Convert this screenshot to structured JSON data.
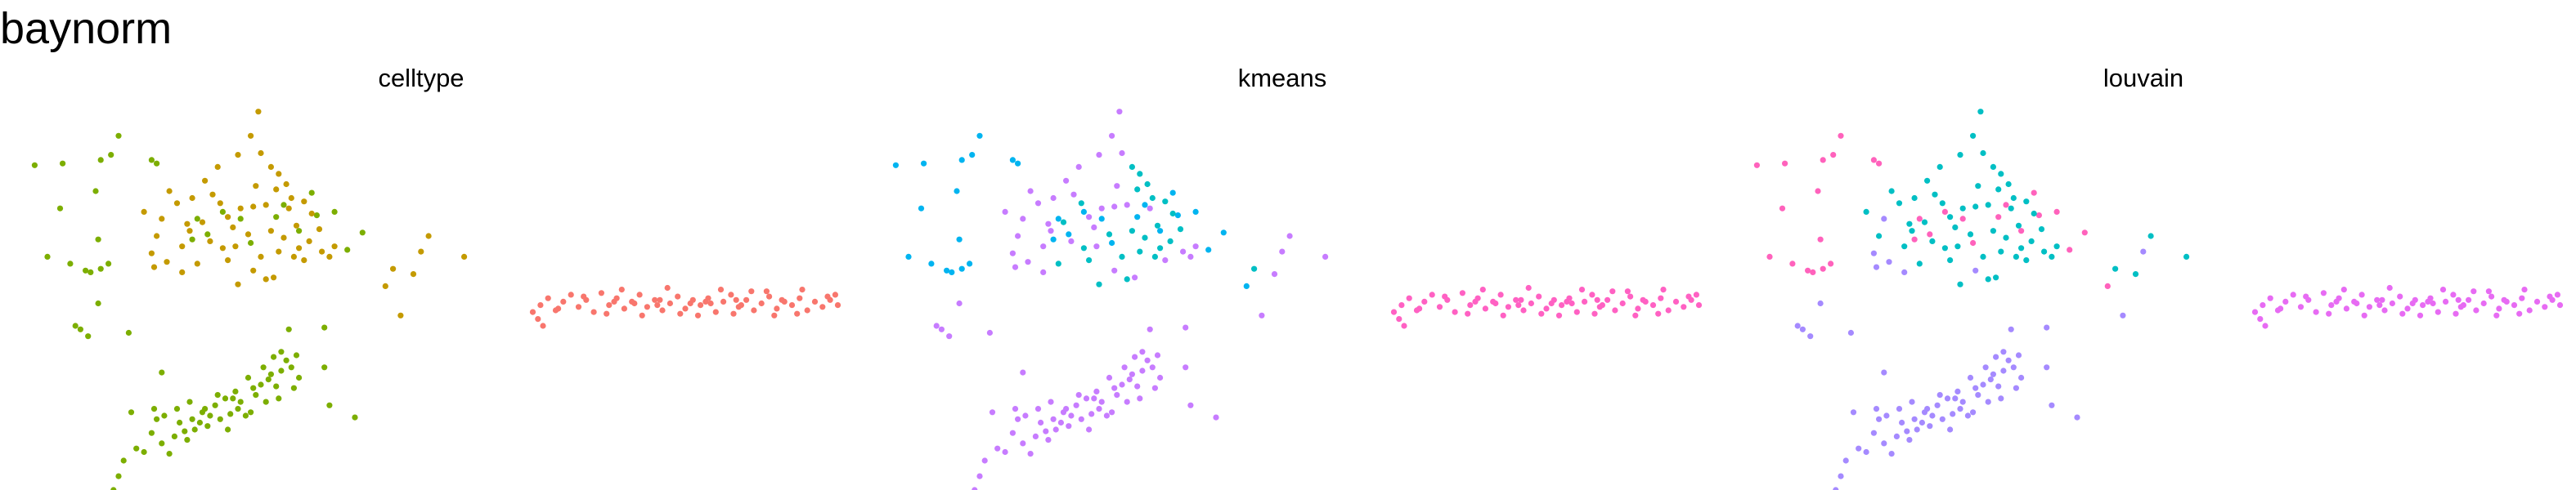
{
  "title": "baynorm",
  "chart_data": {
    "type": "scatter",
    "facets": [
      "celltype",
      "kmeans",
      "louvain"
    ],
    "axes": {
      "visible": false,
      "grid": false
    },
    "legend": "none",
    "points": [
      [
        -10.0,
        -1.5,
        1,
        3,
        3
      ],
      [
        -9.0,
        -1.5,
        1,
        3,
        3
      ],
      [
        -8.5,
        -0.5,
        1,
        3,
        3
      ],
      [
        -8.3,
        0.3,
        1,
        3,
        3
      ],
      [
        -8.1,
        1.2,
        1,
        3,
        3
      ],
      [
        -7.6,
        1.9,
        1,
        3,
        3
      ],
      [
        -7.3,
        1.7,
        1,
        3,
        3
      ],
      [
        -7.0,
        2.8,
        1,
        3,
        3
      ],
      [
        -6.8,
        3.6,
        1,
        3,
        3
      ],
      [
        -6.5,
        3.8,
        1,
        3,
        3
      ],
      [
        -6.3,
        1.6,
        1,
        3,
        3
      ],
      [
        -6.1,
        2.6,
        1,
        3,
        3
      ],
      [
        -5.9,
        3.4,
        1,
        3,
        3
      ],
      [
        -5.7,
        2.9,
        1,
        3,
        3
      ],
      [
        -5.5,
        4.6,
        1,
        3,
        3
      ],
      [
        -5.3,
        3.0,
        1,
        3,
        3
      ],
      [
        -5.1,
        3.4,
        1,
        3,
        3
      ],
      [
        -4.9,
        4.2,
        1,
        3,
        3
      ],
      [
        -4.7,
        3.8,
        1,
        3,
        3
      ],
      [
        -4.5,
        4.4,
        1,
        3,
        3
      ],
      [
        -4.3,
        3.6,
        1,
        3,
        3
      ],
      [
        -4.1,
        4.8,
        1,
        3,
        3
      ],
      [
        -3.9,
        3.9,
        1,
        3,
        3
      ],
      [
        -3.7,
        5.2,
        1,
        3,
        3
      ],
      [
        -3.5,
        4.6,
        1,
        3,
        3
      ],
      [
        -3.3,
        3.8,
        1,
        3,
        3
      ],
      [
        -3.1,
        4.0,
        1,
        3,
        3
      ],
      [
        -2.9,
        5.0,
        1,
        3,
        3
      ],
      [
        -2.7,
        5.6,
        1,
        3,
        3
      ],
      [
        -2.5,
        4.6,
        1,
        3,
        3
      ],
      [
        -2.3,
        6.2,
        1,
        3,
        3
      ],
      [
        -2.1,
        5.5,
        1,
        3,
        3
      ],
      [
        -1.9,
        6.4,
        1,
        3,
        3
      ],
      [
        -1.7,
        7.0,
        1,
        3,
        3
      ],
      [
        -1.5,
        6.6,
        1,
        3,
        3
      ],
      [
        -1.3,
        7.3,
        1,
        3,
        3
      ],
      [
        -1.2,
        6.0,
        1,
        3,
        3
      ],
      [
        -6.0,
        4.2,
        1,
        3,
        3
      ],
      [
        -5.6,
        2.4,
        1,
        3,
        3
      ],
      [
        -4.8,
        3.2,
        1,
        3,
        3
      ],
      [
        -4.0,
        3.0,
        1,
        3,
        3
      ],
      [
        -3.6,
        4.2,
        1,
        3,
        3
      ],
      [
        -3.0,
        5.4,
        1,
        3,
        3
      ],
      [
        -2.4,
        5.9,
        1,
        3,
        3
      ],
      [
        -2.0,
        4.8,
        1,
        3,
        3
      ],
      [
        -1.9,
        7.5,
        1,
        3,
        3
      ],
      [
        -6.9,
        4.2,
        1,
        3,
        3
      ],
      [
        -5.4,
        3.6,
        1,
        3,
        3
      ],
      [
        -4.4,
        5.0,
        1,
        3,
        3
      ],
      [
        -3.2,
        6.0,
        1,
        3,
        3
      ],
      [
        -7.8,
        4.0,
        1,
        3,
        3
      ],
      [
        -2.2,
        7.2,
        1,
        3,
        3
      ],
      [
        -1.4,
        5.4,
        1,
        3,
        3
      ],
      [
        -0.2,
        6.6,
        1,
        3,
        3
      ],
      [
        0.0,
        4.4,
        1,
        3,
        3
      ],
      [
        1.0,
        3.7,
        1,
        3,
        3
      ],
      [
        -6.6,
        2.2,
        1,
        3,
        3
      ],
      [
        -3.8,
        4.8,
        1,
        3,
        3
      ],
      [
        -2.6,
        6.6,
        1,
        3,
        3
      ],
      [
        -5.0,
        4.0,
        1,
        3,
        3
      ],
      [
        -9.5,
        8.4,
        1,
        3,
        3
      ],
      [
        -10.0,
        9.0,
        1,
        3,
        3
      ],
      [
        -7.9,
        8.6,
        1,
        3,
        3
      ],
      [
        -6.6,
        6.3,
        1,
        3,
        3
      ],
      [
        -0.2,
        8.9,
        1,
        3,
        3
      ],
      [
        -1.6,
        8.8,
        1,
        3,
        3
      ],
      [
        -9.8,
        8.8,
        1,
        3,
        3
      ],
      [
        -9.1,
        10.3,
        1,
        3,
        3
      ],
      [
        -11.6,
        18.3,
        1,
        1,
        1
      ],
      [
        -10.5,
        18.4,
        1,
        1,
        1
      ],
      [
        -9.2,
        16.8,
        1,
        1,
        1
      ],
      [
        -9.0,
        18.6,
        1,
        1,
        1
      ],
      [
        -9.1,
        14.0,
        1,
        1,
        1
      ],
      [
        -9.0,
        12.3,
        1,
        1,
        1
      ],
      [
        -9.4,
        12.1,
        1,
        1,
        1
      ],
      [
        -8.7,
        12.6,
        1,
        1,
        1
      ],
      [
        -7.0,
        18.6,
        1,
        1,
        1
      ],
      [
        -6.8,
        18.4,
        1,
        1,
        1
      ],
      [
        -5.2,
        15.2,
        1,
        1,
        1
      ],
      [
        -4.8,
        14.3,
        1,
        1,
        1
      ],
      [
        -4.2,
        15.6,
        1,
        1,
        1
      ],
      [
        -3.5,
        15.2,
        1,
        1,
        1
      ],
      [
        -3.1,
        13.8,
        1,
        1,
        1
      ],
      [
        -2.1,
        15.3,
        1,
        1,
        1
      ],
      [
        -1.8,
        16.0,
        1,
        1,
        1
      ],
      [
        -1.2,
        14.5,
        1,
        1,
        1
      ],
      [
        -0.7,
        16.7,
        1,
        1,
        1
      ],
      [
        -0.5,
        15.4,
        1,
        1,
        1
      ],
      [
        0.2,
        15.6,
        1,
        1,
        1
      ],
      [
        0.7,
        13.4,
        1,
        1,
        1
      ],
      [
        1.3,
        14.4,
        1,
        1,
        1
      ],
      [
        -5.4,
        14.0,
        1,
        1,
        1
      ],
      [
        -8.6,
        18.9,
        1,
        1,
        1
      ],
      [
        -8.3,
        20.0,
        1,
        1,
        1
      ],
      [
        -10.6,
        15.8,
        1,
        1,
        1
      ],
      [
        -10.2,
        12.6,
        1,
        1,
        1
      ],
      [
        -9.6,
        12.2,
        1,
        1,
        1
      ],
      [
        -11.1,
        13.0,
        1,
        1,
        1
      ],
      [
        -7.3,
        15.6,
        2,
        3,
        2
      ],
      [
        -6.6,
        15.2,
        2,
        3,
        3
      ],
      [
        -6.0,
        16.1,
        2,
        3,
        2
      ],
      [
        -5.5,
        14.5,
        2,
        3,
        2
      ],
      [
        -5.0,
        15.0,
        2,
        2,
        2
      ],
      [
        -4.7,
        13.9,
        2,
        3,
        2
      ],
      [
        -4.6,
        16.6,
        2,
        3,
        2
      ],
      [
        -4.2,
        13.5,
        2,
        2,
        2
      ],
      [
        -4.0,
        15.3,
        2,
        3,
        2
      ],
      [
        -3.7,
        13.6,
        2,
        3,
        2
      ],
      [
        -3.5,
        15.8,
        2,
        3,
        2
      ],
      [
        -3.2,
        14.3,
        2,
        2,
        2
      ],
      [
        -3.0,
        15.9,
        2,
        3,
        2
      ],
      [
        -2.7,
        13.0,
        2,
        2,
        2
      ],
      [
        -2.5,
        16.0,
        2,
        3,
        2
      ],
      [
        -2.3,
        14.5,
        2,
        2,
        2
      ],
      [
        -2.0,
        13.3,
        2,
        2,
        2
      ],
      [
        -1.8,
        14.1,
        2,
        2,
        2
      ],
      [
        -1.6,
        15.8,
        2,
        3,
        2
      ],
      [
        -1.4,
        13.0,
        2,
        2,
        2
      ],
      [
        -1.2,
        13.5,
        2,
        2,
        2
      ],
      [
        -1.0,
        12.8,
        2,
        3,
        2
      ],
      [
        -7.0,
        13.2,
        2,
        3,
        3
      ],
      [
        -6.4,
        12.7,
        2,
        3,
        3
      ],
      [
        -5.8,
        12.1,
        2,
        3,
        3
      ],
      [
        -5.2,
        12.6,
        2,
        2,
        2
      ],
      [
        -5.8,
        13.6,
        2,
        3,
        2
      ],
      [
        -3.0,
        12.2,
        2,
        3,
        3
      ],
      [
        -2.5,
        11.7,
        2,
        2,
        2
      ],
      [
        -4.0,
        12.8,
        2,
        2,
        2
      ],
      [
        -3.6,
        11.4,
        2,
        2,
        2
      ],
      [
        -2.2,
        11.8,
        2,
        3,
        2
      ],
      [
        -6.8,
        14.2,
        2,
        3,
        2
      ],
      [
        -6.3,
        16.8,
        2,
        3,
        2
      ],
      [
        -5.4,
        16.4,
        2,
        3,
        2
      ],
      [
        -4.9,
        17.4,
        2,
        3,
        2
      ],
      [
        -4.4,
        18.2,
        2,
        3,
        2
      ],
      [
        -3.6,
        18.9,
        2,
        3,
        2
      ],
      [
        -3.1,
        20.0,
        2,
        3,
        2
      ],
      [
        -2.7,
        19.0,
        2,
        3,
        2
      ],
      [
        -2.3,
        18.2,
        2,
        2,
        2
      ],
      [
        -2.0,
        17.8,
        2,
        2,
        2
      ],
      [
        -1.7,
        17.2,
        2,
        2,
        2
      ],
      [
        -1.5,
        16.4,
        2,
        2,
        2
      ],
      [
        -1.0,
        16.2,
        2,
        2,
        2
      ],
      [
        -0.7,
        15.5,
        2,
        2,
        2
      ],
      [
        -0.4,
        14.6,
        2,
        2,
        2
      ],
      [
        -3.8,
        14.7,
        2,
        3,
        2
      ],
      [
        -2.9,
        17.1,
        2,
        3,
        2
      ],
      [
        -2.1,
        16.9,
        2,
        2,
        2
      ],
      [
        -6.9,
        12.4,
        2,
        3,
        3
      ],
      [
        -5.6,
        14.9,
        2,
        3,
        2
      ],
      [
        -4.3,
        16.1,
        2,
        2,
        2
      ],
      [
        -1.3,
        14.8,
        2,
        2,
        2
      ],
      [
        -0.8,
        13.9,
        2,
        2,
        2
      ],
      [
        -0.3,
        13.3,
        2,
        3,
        2
      ],
      [
        0.0,
        13.0,
        2,
        3,
        2
      ],
      [
        0.2,
        13.6,
        2,
        3,
        2
      ],
      [
        -2.8,
        21.4,
        2,
        3,
        2
      ],
      [
        2.2,
        11.3,
        2,
        1,
        1
      ],
      [
        3.9,
        14.2,
        2,
        3,
        2
      ],
      [
        2.8,
        9.6,
        2,
        3,
        3
      ],
      [
        8.0,
        9.8,
        0,
        0,
        0
      ],
      [
        8.3,
        10.2,
        0,
        0,
        0
      ],
      [
        8.6,
        10.6,
        0,
        0,
        0
      ],
      [
        8.9,
        9.9,
        0,
        0,
        0
      ],
      [
        9.2,
        10.4,
        0,
        0,
        0
      ],
      [
        9.5,
        10.8,
        0,
        0,
        0
      ],
      [
        9.8,
        10.1,
        0,
        0,
        0
      ],
      [
        10.1,
        10.5,
        0,
        0,
        0
      ],
      [
        10.4,
        9.8,
        0,
        0,
        0
      ],
      [
        10.7,
        10.9,
        0,
        0,
        0
      ],
      [
        11.0,
        10.2,
        0,
        0,
        0
      ],
      [
        11.3,
        10.6,
        0,
        0,
        0
      ],
      [
        11.6,
        10.0,
        0,
        0,
        0
      ],
      [
        11.9,
        10.4,
        0,
        0,
        0
      ],
      [
        12.2,
        10.8,
        0,
        0,
        0
      ],
      [
        12.5,
        10.1,
        0,
        0,
        0
      ],
      [
        12.8,
        10.5,
        0,
        0,
        0
      ],
      [
        13.1,
        9.9,
        0,
        0,
        0
      ],
      [
        13.4,
        10.3,
        0,
        0,
        0
      ],
      [
        13.7,
        10.7,
        0,
        0,
        0
      ],
      [
        14.0,
        10.0,
        0,
        0,
        0
      ],
      [
        14.3,
        10.5,
        0,
        0,
        0
      ],
      [
        14.6,
        10.2,
        0,
        0,
        0
      ],
      [
        14.9,
        10.6,
        0,
        0,
        0
      ],
      [
        15.2,
        9.8,
        0,
        0,
        0
      ],
      [
        15.5,
        10.4,
        0,
        0,
        0
      ],
      [
        15.8,
        10.8,
        0,
        0,
        0
      ],
      [
        16.1,
        10.1,
        0,
        0,
        0
      ],
      [
        16.4,
        10.5,
        0,
        0,
        0
      ],
      [
        16.7,
        9.9,
        0,
        0,
        0
      ],
      [
        17.0,
        10.3,
        0,
        0,
        0
      ],
      [
        17.3,
        10.7,
        0,
        0,
        0
      ],
      [
        17.6,
        10.0,
        0,
        0,
        0
      ],
      [
        17.9,
        10.4,
        0,
        0,
        0
      ],
      [
        18.2,
        10.2,
        0,
        0,
        0
      ],
      [
        18.5,
        10.6,
        0,
        0,
        0
      ],
      [
        18.8,
        9.9,
        0,
        0,
        0
      ],
      [
        19.1,
        10.4,
        0,
        0,
        0
      ],
      [
        19.4,
        10.1,
        0,
        0,
        0
      ],
      [
        19.7,
        10.5,
        0,
        0,
        0
      ],
      [
        9.0,
        10.0,
        0,
        0,
        0
      ],
      [
        10.0,
        10.7,
        0,
        0,
        0
      ],
      [
        11.5,
        11.1,
        0,
        0,
        0
      ],
      [
        12.3,
        9.6,
        0,
        0,
        0
      ],
      [
        13.3,
        11.2,
        0,
        0,
        0
      ],
      [
        14.5,
        9.6,
        0,
        0,
        0
      ],
      [
        15.4,
        11.1,
        0,
        0,
        0
      ],
      [
        16.6,
        11.0,
        0,
        0,
        0
      ],
      [
        17.5,
        9.6,
        0,
        0,
        0
      ],
      [
        18.6,
        11.1,
        0,
        0,
        0
      ],
      [
        12.0,
        10.3,
        0,
        0,
        0
      ],
      [
        13.0,
        10.5,
        0,
        0,
        0
      ],
      [
        14.2,
        10.3,
        0,
        0,
        0
      ],
      [
        15.0,
        10.3,
        0,
        0,
        0
      ],
      [
        16.0,
        10.5,
        0,
        0,
        0
      ],
      [
        11.2,
        10.4,
        0,
        0,
        0
      ],
      [
        12.9,
        10.2,
        0,
        0,
        0
      ],
      [
        14.8,
        10.4,
        0,
        0,
        0
      ],
      [
        16.2,
        10.2,
        0,
        0,
        0
      ],
      [
        17.8,
        10.5,
        0,
        0,
        0
      ],
      [
        8.2,
        9.4,
        0,
        0,
        0
      ],
      [
        8.4,
        9.0,
        0,
        0,
        0
      ],
      [
        19.6,
        10.7,
        0,
        0,
        0
      ],
      [
        20.0,
        10.2,
        0,
        0,
        0
      ],
      [
        19.9,
        10.8,
        0,
        0,
        0
      ],
      [
        10.9,
        9.7,
        0,
        0,
        0
      ],
      [
        13.8,
        9.7,
        0,
        0,
        0
      ],
      [
        15.9,
        9.7,
        0,
        0,
        0
      ],
      [
        17.2,
        11.0,
        0,
        0,
        0
      ],
      [
        18.4,
        9.7,
        0,
        0,
        0
      ],
      [
        3.6,
        13.3,
        2,
        3,
        3
      ],
      [
        5.3,
        13.0,
        2,
        3,
        2
      ],
      [
        3.3,
        12.0,
        2,
        3,
        2
      ],
      [
        2.5,
        12.3,
        2,
        2,
        2
      ]
    ],
    "group_colors": {
      "celltype": [
        "#F8766D",
        "#7CAE00",
        "#C49A00",
        "#00C08B"
      ],
      "kmeans": [
        "#FF61C3",
        "#00B4F0",
        "#00BFC4",
        "#C77CFF"
      ],
      "louvain": [
        "#E76BF3",
        "#FF62BC",
        "#00BFC4",
        "#A58AFF"
      ]
    }
  }
}
